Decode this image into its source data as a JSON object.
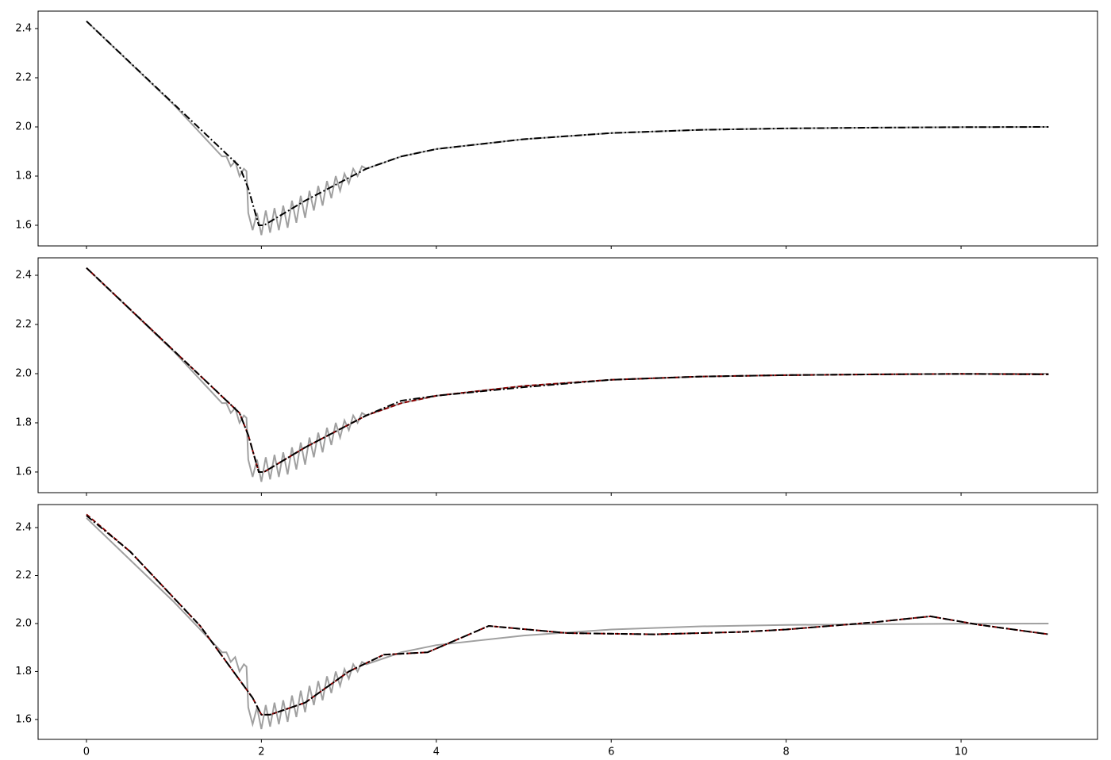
{
  "chart_data": [
    {
      "type": "line",
      "xlim": [
        -0.553,
        11.56
      ],
      "ylim": [
        1.516,
        2.471
      ],
      "xticks": [
        0,
        2,
        4,
        6,
        8,
        10
      ],
      "show_xticklabels": false,
      "yticks": [
        1.6,
        1.8,
        {
          "value": 2,
          "label": "2.0"
        },
        2.2,
        2.4
      ],
      "series": [
        {
          "color": "#a0a0a0",
          "linestyle": "solid",
          "x": [
            0,
            1.0,
            1.55,
            1.6,
            1.65,
            1.7,
            1.75,
            1.8,
            1.83,
            1.85,
            1.9,
            1.95,
            2.0,
            2.05,
            2.1,
            2.15,
            2.2,
            2.25,
            2.3,
            2.35,
            2.4,
            2.45,
            2.5,
            2.55,
            2.6,
            2.65,
            2.7,
            2.75,
            2.8,
            2.85,
            2.9,
            2.95,
            3.0,
            3.05,
            3.1,
            3.15,
            3.2,
            3.6,
            4,
            5,
            6,
            7,
            8,
            9,
            10,
            11
          ],
          "values": [
            2.43,
            2.09,
            1.88,
            1.88,
            1.84,
            1.86,
            1.8,
            1.83,
            1.82,
            1.65,
            1.58,
            1.65,
            1.56,
            1.66,
            1.57,
            1.67,
            1.58,
            1.68,
            1.59,
            1.7,
            1.61,
            1.72,
            1.63,
            1.74,
            1.66,
            1.76,
            1.68,
            1.78,
            1.71,
            1.8,
            1.74,
            1.81,
            1.77,
            1.83,
            1.8,
            1.84,
            1.83,
            1.88,
            1.91,
            1.95,
            1.975,
            1.988,
            1.994,
            1.997,
            1.999,
            2.0
          ]
        },
        {
          "color": "#000000",
          "linestyle": "dashdot",
          "x": [
            0,
            1.75,
            1.85,
            1.97,
            2.03,
            2.5,
            3.2,
            3.6,
            4,
            5,
            6,
            7,
            8,
            9,
            10,
            11
          ],
          "values": [
            2.43,
            1.84,
            1.75,
            1.6,
            1.6,
            1.7,
            1.83,
            1.88,
            1.91,
            1.95,
            1.975,
            1.988,
            1.994,
            1.997,
            1.999,
            2.0
          ]
        }
      ]
    },
    {
      "type": "line",
      "xlim": [
        -0.553,
        11.56
      ],
      "ylim": [
        1.516,
        2.471
      ],
      "xticks": [
        0,
        2,
        4,
        6,
        8,
        10
      ],
      "show_xticklabels": false,
      "yticks": [
        1.6,
        1.8,
        {
          "value": 2,
          "label": "2.0"
        },
        2.2,
        2.4
      ],
      "series": [
        {
          "color": "#a0a0a0",
          "linestyle": "solid",
          "x": [
            0,
            1.0,
            1.55,
            1.6,
            1.65,
            1.7,
            1.75,
            1.8,
            1.83,
            1.85,
            1.9,
            1.95,
            2.0,
            2.05,
            2.1,
            2.15,
            2.2,
            2.25,
            2.3,
            2.35,
            2.4,
            2.45,
            2.5,
            2.55,
            2.6,
            2.65,
            2.7,
            2.75,
            2.8,
            2.85,
            2.9,
            2.95,
            3.0,
            3.05,
            3.1,
            3.15,
            3.2,
            3.6,
            4,
            5,
            6,
            7,
            8,
            9,
            10,
            11
          ],
          "values": [
            2.43,
            2.09,
            1.88,
            1.88,
            1.84,
            1.86,
            1.8,
            1.83,
            1.82,
            1.65,
            1.58,
            1.65,
            1.56,
            1.66,
            1.57,
            1.67,
            1.58,
            1.68,
            1.59,
            1.7,
            1.61,
            1.72,
            1.63,
            1.74,
            1.66,
            1.76,
            1.68,
            1.78,
            1.71,
            1.8,
            1.74,
            1.81,
            1.77,
            1.83,
            1.8,
            1.84,
            1.83,
            1.88,
            1.91,
            1.95,
            1.975,
            1.988,
            1.994,
            1.997,
            1.999,
            2.0
          ]
        },
        {
          "color": "#8b0000",
          "linestyle": "dashed",
          "x": [
            0,
            1.75,
            1.85,
            1.97,
            2.03,
            2.5,
            3.2,
            3.6,
            4,
            5,
            6,
            7,
            8,
            9,
            10,
            11
          ],
          "values": [
            2.43,
            1.84,
            1.75,
            1.6,
            1.6,
            1.7,
            1.83,
            1.88,
            1.91,
            1.95,
            1.975,
            1.988,
            1.994,
            1.997,
            1.999,
            1.997
          ]
        },
        {
          "color": "#000000",
          "linestyle": "dashdot",
          "x": [
            0,
            1.75,
            1.85,
            1.97,
            2.03,
            2.5,
            3.2,
            3.6,
            4,
            5,
            6,
            7,
            8,
            9,
            10,
            11
          ],
          "values": [
            2.43,
            1.84,
            1.75,
            1.6,
            1.6,
            1.7,
            1.83,
            1.89,
            1.91,
            1.945,
            1.975,
            1.988,
            1.994,
            1.997,
            1.999,
            1.997
          ]
        }
      ]
    },
    {
      "type": "line",
      "xlim": [
        -0.553,
        11.56
      ],
      "ylim": [
        1.517,
        2.496
      ],
      "xticks": [
        0,
        2,
        4,
        6,
        8,
        10
      ],
      "show_xticklabels": true,
      "yticks": [
        1.6,
        1.8,
        {
          "value": 2,
          "label": "2.0"
        },
        2.2,
        2.4
      ],
      "series": [
        {
          "color": "#a0a0a0",
          "linestyle": "solid",
          "x": [
            0,
            1.0,
            1.55,
            1.6,
            1.65,
            1.7,
            1.75,
            1.8,
            1.83,
            1.85,
            1.9,
            1.95,
            2.0,
            2.05,
            2.1,
            2.15,
            2.2,
            2.25,
            2.3,
            2.35,
            2.4,
            2.45,
            2.5,
            2.55,
            2.6,
            2.65,
            2.7,
            2.75,
            2.8,
            2.85,
            2.9,
            2.95,
            3.0,
            3.05,
            3.1,
            3.15,
            3.2,
            3.6,
            4,
            5,
            6,
            7,
            8,
            9,
            10,
            11
          ],
          "values": [
            2.44,
            2.09,
            1.88,
            1.88,
            1.84,
            1.86,
            1.8,
            1.83,
            1.82,
            1.65,
            1.58,
            1.65,
            1.56,
            1.66,
            1.57,
            1.67,
            1.58,
            1.68,
            1.59,
            1.7,
            1.61,
            1.72,
            1.63,
            1.74,
            1.66,
            1.76,
            1.68,
            1.78,
            1.71,
            1.8,
            1.74,
            1.81,
            1.77,
            1.83,
            1.8,
            1.84,
            1.83,
            1.88,
            1.91,
            1.95,
            1.975,
            1.988,
            1.994,
            1.997,
            1.999,
            2.0
          ]
        },
        {
          "color": "#8b0000",
          "linestyle": "dashed",
          "x": [
            0,
            0.5,
            1.3,
            1.9,
            2.0,
            2.1,
            2.5,
            3.0,
            3.4,
            3.9,
            4.6,
            5.5,
            6.5,
            7.5,
            8.0,
            9.0,
            9.65,
            10.2,
            11
          ],
          "values": [
            2.455,
            2.3,
            1.99,
            1.69,
            1.62,
            1.62,
            1.67,
            1.8,
            1.87,
            1.88,
            1.99,
            1.96,
            1.955,
            1.965,
            1.975,
            2.005,
            2.03,
            1.995,
            1.955
          ]
        },
        {
          "color": "#000000",
          "linestyle": "dashdot",
          "x": [
            0,
            0.5,
            1.3,
            1.9,
            2.0,
            2.1,
            2.5,
            3.0,
            3.4,
            3.9,
            4.6,
            5.5,
            6.5,
            7.5,
            8.0,
            9.0,
            9.65,
            10.2,
            11
          ],
          "values": [
            2.45,
            2.3,
            1.99,
            1.69,
            1.62,
            1.62,
            1.67,
            1.8,
            1.87,
            1.88,
            1.99,
            1.96,
            1.955,
            1.965,
            1.975,
            2.005,
            2.03,
            1.995,
            1.955
          ]
        }
      ]
    }
  ]
}
